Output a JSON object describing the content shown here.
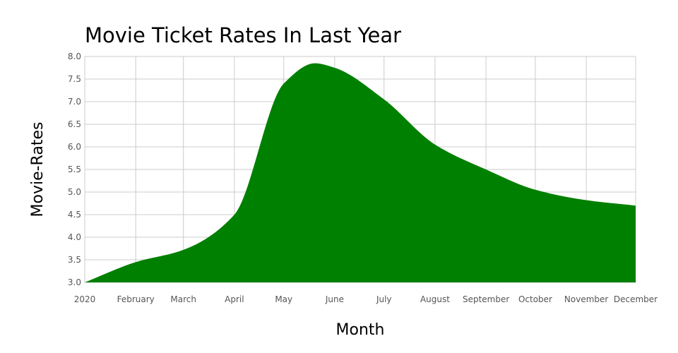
{
  "chart_data": {
    "type": "area",
    "title": "Movie Ticket Rates In Last Year",
    "xlabel": "Month",
    "ylabel": "Movie-Rates",
    "categories": [
      "2020",
      "February",
      "March",
      "April",
      "May",
      "June",
      "July",
      "August",
      "September",
      "October",
      "November",
      "December"
    ],
    "x": [
      "2020-01-01",
      "2020-02-01",
      "2020-03-01",
      "2020-04-01",
      "2020-05-01",
      "2020-06-01",
      "2020-07-01",
      "2020-08-01",
      "2020-09-01",
      "2020-10-01",
      "2020-11-01",
      "2020-12-01"
    ],
    "series": [
      {
        "x": [
          "2020-01-01",
          "2020-02-01",
          "2020-03-01",
          "2020-04-01",
          "2020-05-01",
          "2020-05-20",
          "2020-06-01",
          "2020-07-01",
          "2020-08-01",
          "2020-09-01",
          "2020-10-01",
          "2020-11-01",
          "2020-12-01"
        ],
        "values": [
          3.0,
          3.45,
          3.72,
          4.5,
          7.4,
          7.85,
          7.75,
          7.05,
          6.05,
          5.5,
          5.05,
          4.82,
          4.7
        ]
      }
    ],
    "ylim": [
      3.0,
      8.0
    ],
    "yticks": [
      "3.0",
      "3.5",
      "4.0",
      "4.5",
      "5.0",
      "5.5",
      "6.0",
      "6.5",
      "7.0",
      "7.5",
      "8.0"
    ],
    "grid": true,
    "colors": {
      "fill": "#008000",
      "grid": "#cccccc"
    }
  }
}
